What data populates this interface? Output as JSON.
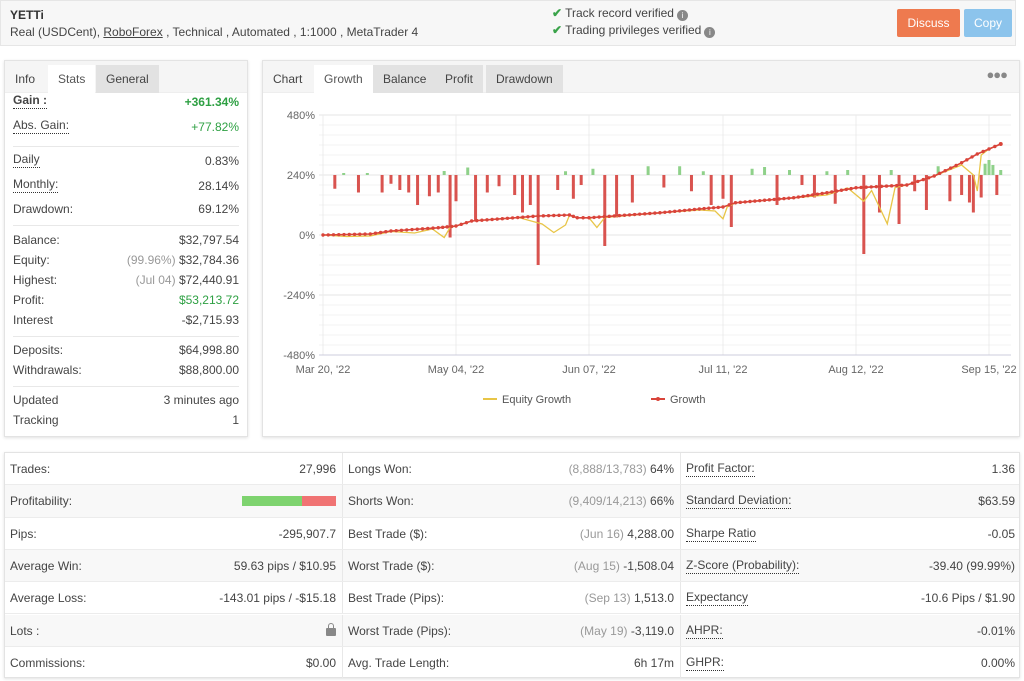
{
  "header": {
    "title": "YETTi",
    "subtitle_prefix": "Real (USDCent), ",
    "broker": "RoboForex",
    "subtitle_suffix": " , Technical , Automated , 1:1000 , MetaTrader 4",
    "verifications": [
      "Track record verified",
      "Trading privileges verified"
    ],
    "discuss_label": "Discuss",
    "copy_label": "Copy",
    "colors": {
      "discuss": "#ee7a4f",
      "copy": "#8cc4ec",
      "check": "#3aa34a"
    }
  },
  "left_tabs": [
    "Info",
    "Stats",
    "General"
  ],
  "left_active_tab": "Stats",
  "stats": {
    "gain": {
      "label": "Gain :",
      "value": "+361.34%"
    },
    "abs_gain": {
      "label": "Abs. Gain:",
      "value": "+77.82%"
    },
    "daily": {
      "label": "Daily",
      "value": "0.83%"
    },
    "monthly": {
      "label": "Monthly:",
      "value": "28.14%"
    },
    "drawdown": {
      "label": "Drawdown:",
      "value": "69.12%"
    },
    "balance": {
      "label": "Balance:",
      "value": "$32,797.54"
    },
    "equity": {
      "label": "Equity:",
      "muted": "(99.96%)",
      "value": "$32,784.36"
    },
    "highest": {
      "label": "Highest:",
      "muted": "(Jul 04)",
      "value": "$72,440.91"
    },
    "profit": {
      "label": "Profit:",
      "value": "$53,213.72"
    },
    "interest": {
      "label": "Interest",
      "value": "-$2,715.93"
    },
    "deposits": {
      "label": "Deposits:",
      "value": "$64,998.80"
    },
    "withdrawals": {
      "label": "Withdrawals:",
      "value": "$88,800.00"
    },
    "updated": {
      "label": "Updated",
      "value": "3 minutes ago"
    },
    "tracking": {
      "label": "Tracking",
      "value": "1"
    }
  },
  "chart_tabs": [
    "Chart",
    "Growth",
    "Balance",
    "Profit",
    "Drawdown"
  ],
  "chart_active_tab": "Growth",
  "chart_menu_icon": "more-dots-icon",
  "chart_data": {
    "type": "line",
    "ylim": [
      -480,
      480
    ],
    "yticks": [
      "480%",
      "240%",
      "0%",
      "-240%",
      "-480%"
    ],
    "ytick_values": [
      480,
      240,
      0,
      -240,
      -480
    ],
    "xticks": [
      "Mar 20, '22",
      "May 04, '22",
      "Jun 07, '22",
      "Jul 11, '22",
      "Aug 12, '22",
      "Sep 15, '22"
    ],
    "xtick_dates": [
      "2022-03-20",
      "2022-05-04",
      "2022-06-07",
      "2022-07-11",
      "2022-08-12",
      "2022-09-15"
    ],
    "x_end": "2022-09-18",
    "grid": true,
    "legend": "bottom",
    "series": [
      {
        "name": "Equity Growth",
        "color": "#e8c547",
        "points": [
          [
            "2022-03-20",
            0
          ],
          [
            "2022-03-28",
            -6
          ],
          [
            "2022-04-05",
            -4
          ],
          [
            "2022-04-12",
            14
          ],
          [
            "2022-04-20",
            8
          ],
          [
            "2022-04-26",
            24
          ],
          [
            "2022-04-30",
            -10
          ],
          [
            "2022-05-02",
            30
          ],
          [
            "2022-05-04",
            36
          ],
          [
            "2022-05-08",
            56
          ],
          [
            "2022-05-20",
            70
          ],
          [
            "2022-05-26",
            44
          ],
          [
            "2022-05-29",
            10
          ],
          [
            "2022-06-01",
            40
          ],
          [
            "2022-06-02",
            78
          ],
          [
            "2022-06-04",
            69
          ],
          [
            "2022-06-07",
            69
          ],
          [
            "2022-06-09",
            30
          ],
          [
            "2022-06-11",
            70
          ],
          [
            "2022-06-25",
            89
          ],
          [
            "2022-07-05",
            100
          ],
          [
            "2022-07-09",
            96
          ],
          [
            "2022-07-11",
            65
          ],
          [
            "2022-07-12",
            112
          ],
          [
            "2022-07-14",
            129
          ],
          [
            "2022-07-28",
            149
          ],
          [
            "2022-08-05",
            160
          ],
          [
            "2022-08-10",
            188
          ],
          [
            "2022-08-14",
            135
          ],
          [
            "2022-08-16",
            178
          ],
          [
            "2022-08-20",
            45
          ],
          [
            "2022-08-22",
            190
          ],
          [
            "2022-08-25",
            200
          ],
          [
            "2022-09-01",
            236
          ],
          [
            "2022-09-08",
            280
          ],
          [
            "2022-09-11",
            240
          ],
          [
            "2022-09-12",
            176
          ],
          [
            "2022-09-13",
            320
          ],
          [
            "2022-09-15",
            344
          ],
          [
            "2022-09-18",
            364
          ]
        ]
      },
      {
        "name": "Growth",
        "color": "#d9443a",
        "points": [
          [
            "2022-03-20",
            0
          ],
          [
            "2022-04-05",
            4
          ],
          [
            "2022-04-12",
            16
          ],
          [
            "2022-04-28",
            29
          ],
          [
            "2022-05-04",
            36
          ],
          [
            "2022-05-08",
            56
          ],
          [
            "2022-05-25",
            76
          ],
          [
            "2022-06-02",
            80
          ],
          [
            "2022-06-04",
            69
          ],
          [
            "2022-06-07",
            69
          ],
          [
            "2022-06-25",
            89
          ],
          [
            "2022-07-05",
            104
          ],
          [
            "2022-07-11",
            112
          ],
          [
            "2022-07-14",
            129
          ],
          [
            "2022-07-28",
            149
          ],
          [
            "2022-08-05",
            169
          ],
          [
            "2022-08-12",
            189
          ],
          [
            "2022-08-25",
            200
          ],
          [
            "2022-09-01",
            236
          ],
          [
            "2022-09-08",
            289
          ],
          [
            "2022-09-12",
            324
          ],
          [
            "2022-09-15",
            344
          ],
          [
            "2022-09-18",
            364
          ]
        ]
      }
    ],
    "bars": {
      "baseline": 240,
      "up_color": "#8fd18a",
      "down_color": "#d9534f",
      "points": [
        [
          "2022-03-24",
          -55
        ],
        [
          "2022-03-27",
          8
        ],
        [
          "2022-04-01",
          -70
        ],
        [
          "2022-04-04",
          8
        ],
        [
          "2022-04-09",
          -70
        ],
        [
          "2022-04-12",
          -35
        ],
        [
          "2022-04-15",
          -60
        ],
        [
          "2022-04-18",
          -70
        ],
        [
          "2022-04-21",
          -120
        ],
        [
          "2022-04-25",
          -85
        ],
        [
          "2022-04-28",
          -70
        ],
        [
          "2022-04-30",
          16
        ],
        [
          "2022-05-02",
          -250
        ],
        [
          "2022-05-04",
          -105
        ],
        [
          "2022-05-07",
          30
        ],
        [
          "2022-05-09",
          -180
        ],
        [
          "2022-05-12",
          -70
        ],
        [
          "2022-05-15",
          -45
        ],
        [
          "2022-05-19",
          -80
        ],
        [
          "2022-05-21",
          -150
        ],
        [
          "2022-05-23",
          -120
        ],
        [
          "2022-05-25",
          -360
        ],
        [
          "2022-05-30",
          -60
        ],
        [
          "2022-06-01",
          15
        ],
        [
          "2022-06-03",
          -95
        ],
        [
          "2022-06-05",
          -40
        ],
        [
          "2022-06-08",
          25
        ],
        [
          "2022-06-11",
          -284
        ],
        [
          "2022-06-14",
          -170
        ],
        [
          "2022-06-18",
          -110
        ],
        [
          "2022-06-22",
          35
        ],
        [
          "2022-06-26",
          -50
        ],
        [
          "2022-06-30",
          35
        ],
        [
          "2022-07-03",
          -65
        ],
        [
          "2022-07-06",
          15
        ],
        [
          "2022-07-08",
          -120
        ],
        [
          "2022-07-11",
          -95
        ],
        [
          "2022-07-13",
          -208
        ],
        [
          "2022-07-18",
          25
        ],
        [
          "2022-07-21",
          32
        ],
        [
          "2022-07-24",
          -120
        ],
        [
          "2022-07-27",
          20
        ],
        [
          "2022-07-30",
          -40
        ],
        [
          "2022-08-02",
          -90
        ],
        [
          "2022-08-05",
          15
        ],
        [
          "2022-08-07",
          -115
        ],
        [
          "2022-08-10",
          20
        ],
        [
          "2022-08-14",
          -316
        ],
        [
          "2022-08-18",
          -150
        ],
        [
          "2022-08-21",
          20
        ],
        [
          "2022-08-23",
          -196
        ],
        [
          "2022-08-27",
          -65
        ],
        [
          "2022-08-30",
          -140
        ],
        [
          "2022-09-02",
          35
        ],
        [
          "2022-09-05",
          -105
        ],
        [
          "2022-09-08",
          -80
        ],
        [
          "2022-09-10",
          -110
        ],
        [
          "2022-09-11",
          -150
        ],
        [
          "2022-09-13",
          -90
        ],
        [
          "2022-09-14",
          45
        ],
        [
          "2022-09-15",
          60
        ],
        [
          "2022-09-16",
          40
        ],
        [
          "2022-09-17",
          -80
        ],
        [
          "2022-09-18",
          20
        ]
      ]
    }
  },
  "table": {
    "rows": [
      [
        {
          "label": "Trades:",
          "value": "27,996"
        },
        {
          "label": "Longs Won:",
          "muted": "(8,888/13,783)",
          "value": "64%"
        },
        {
          "label": "Profit Factor:",
          "value": "1.36",
          "underline": true
        }
      ],
      [
        {
          "label": "Profitability:",
          "profitability": 0.64
        },
        {
          "label": "Shorts Won:",
          "muted": "(9,409/14,213)",
          "value": "66%"
        },
        {
          "label": "Standard Deviation:",
          "value": "$63.59",
          "underline": true
        }
      ],
      [
        {
          "label": "Pips:",
          "value": "-295,907.7"
        },
        {
          "label": "Best Trade ($):",
          "muted": "(Jun 16)",
          "value": "4,288.00"
        },
        {
          "label": "Sharpe Ratio",
          "value": "-0.05",
          "underline": true
        }
      ],
      [
        {
          "label": "Average Win:",
          "value": "59.63 pips / $10.95"
        },
        {
          "label": "Worst Trade ($):",
          "muted": "(Aug 15)",
          "value": "-1,508.04"
        },
        {
          "label": "Z-Score (Probability):",
          "value": "-39.40 (99.99%)",
          "underline": true
        }
      ],
      [
        {
          "label": "Average Loss:",
          "value": "-143.01 pips / -$15.18"
        },
        {
          "label": "Best Trade (Pips):",
          "muted": "(Sep 13)",
          "value": "1,513.0"
        },
        {
          "label": "Expectancy",
          "value": "-10.6 Pips / $1.90",
          "underline": true
        }
      ],
      [
        {
          "label": "Lots :",
          "icon": "lock-icon"
        },
        {
          "label": "Worst Trade (Pips):",
          "muted": "(May 19)",
          "value": "-3,119.0"
        },
        {
          "label": "AHPR:",
          "value": "-0.01%",
          "underline": true
        }
      ],
      [
        {
          "label": "Commissions:",
          "value": "$0.00"
        },
        {
          "label": "Avg. Trade Length:",
          "value": "6h 17m"
        },
        {
          "label": "GHPR:",
          "value": "0.00%",
          "underline": true
        }
      ]
    ],
    "profitability_colors": [
      "#7ed36f",
      "#f07373"
    ]
  }
}
